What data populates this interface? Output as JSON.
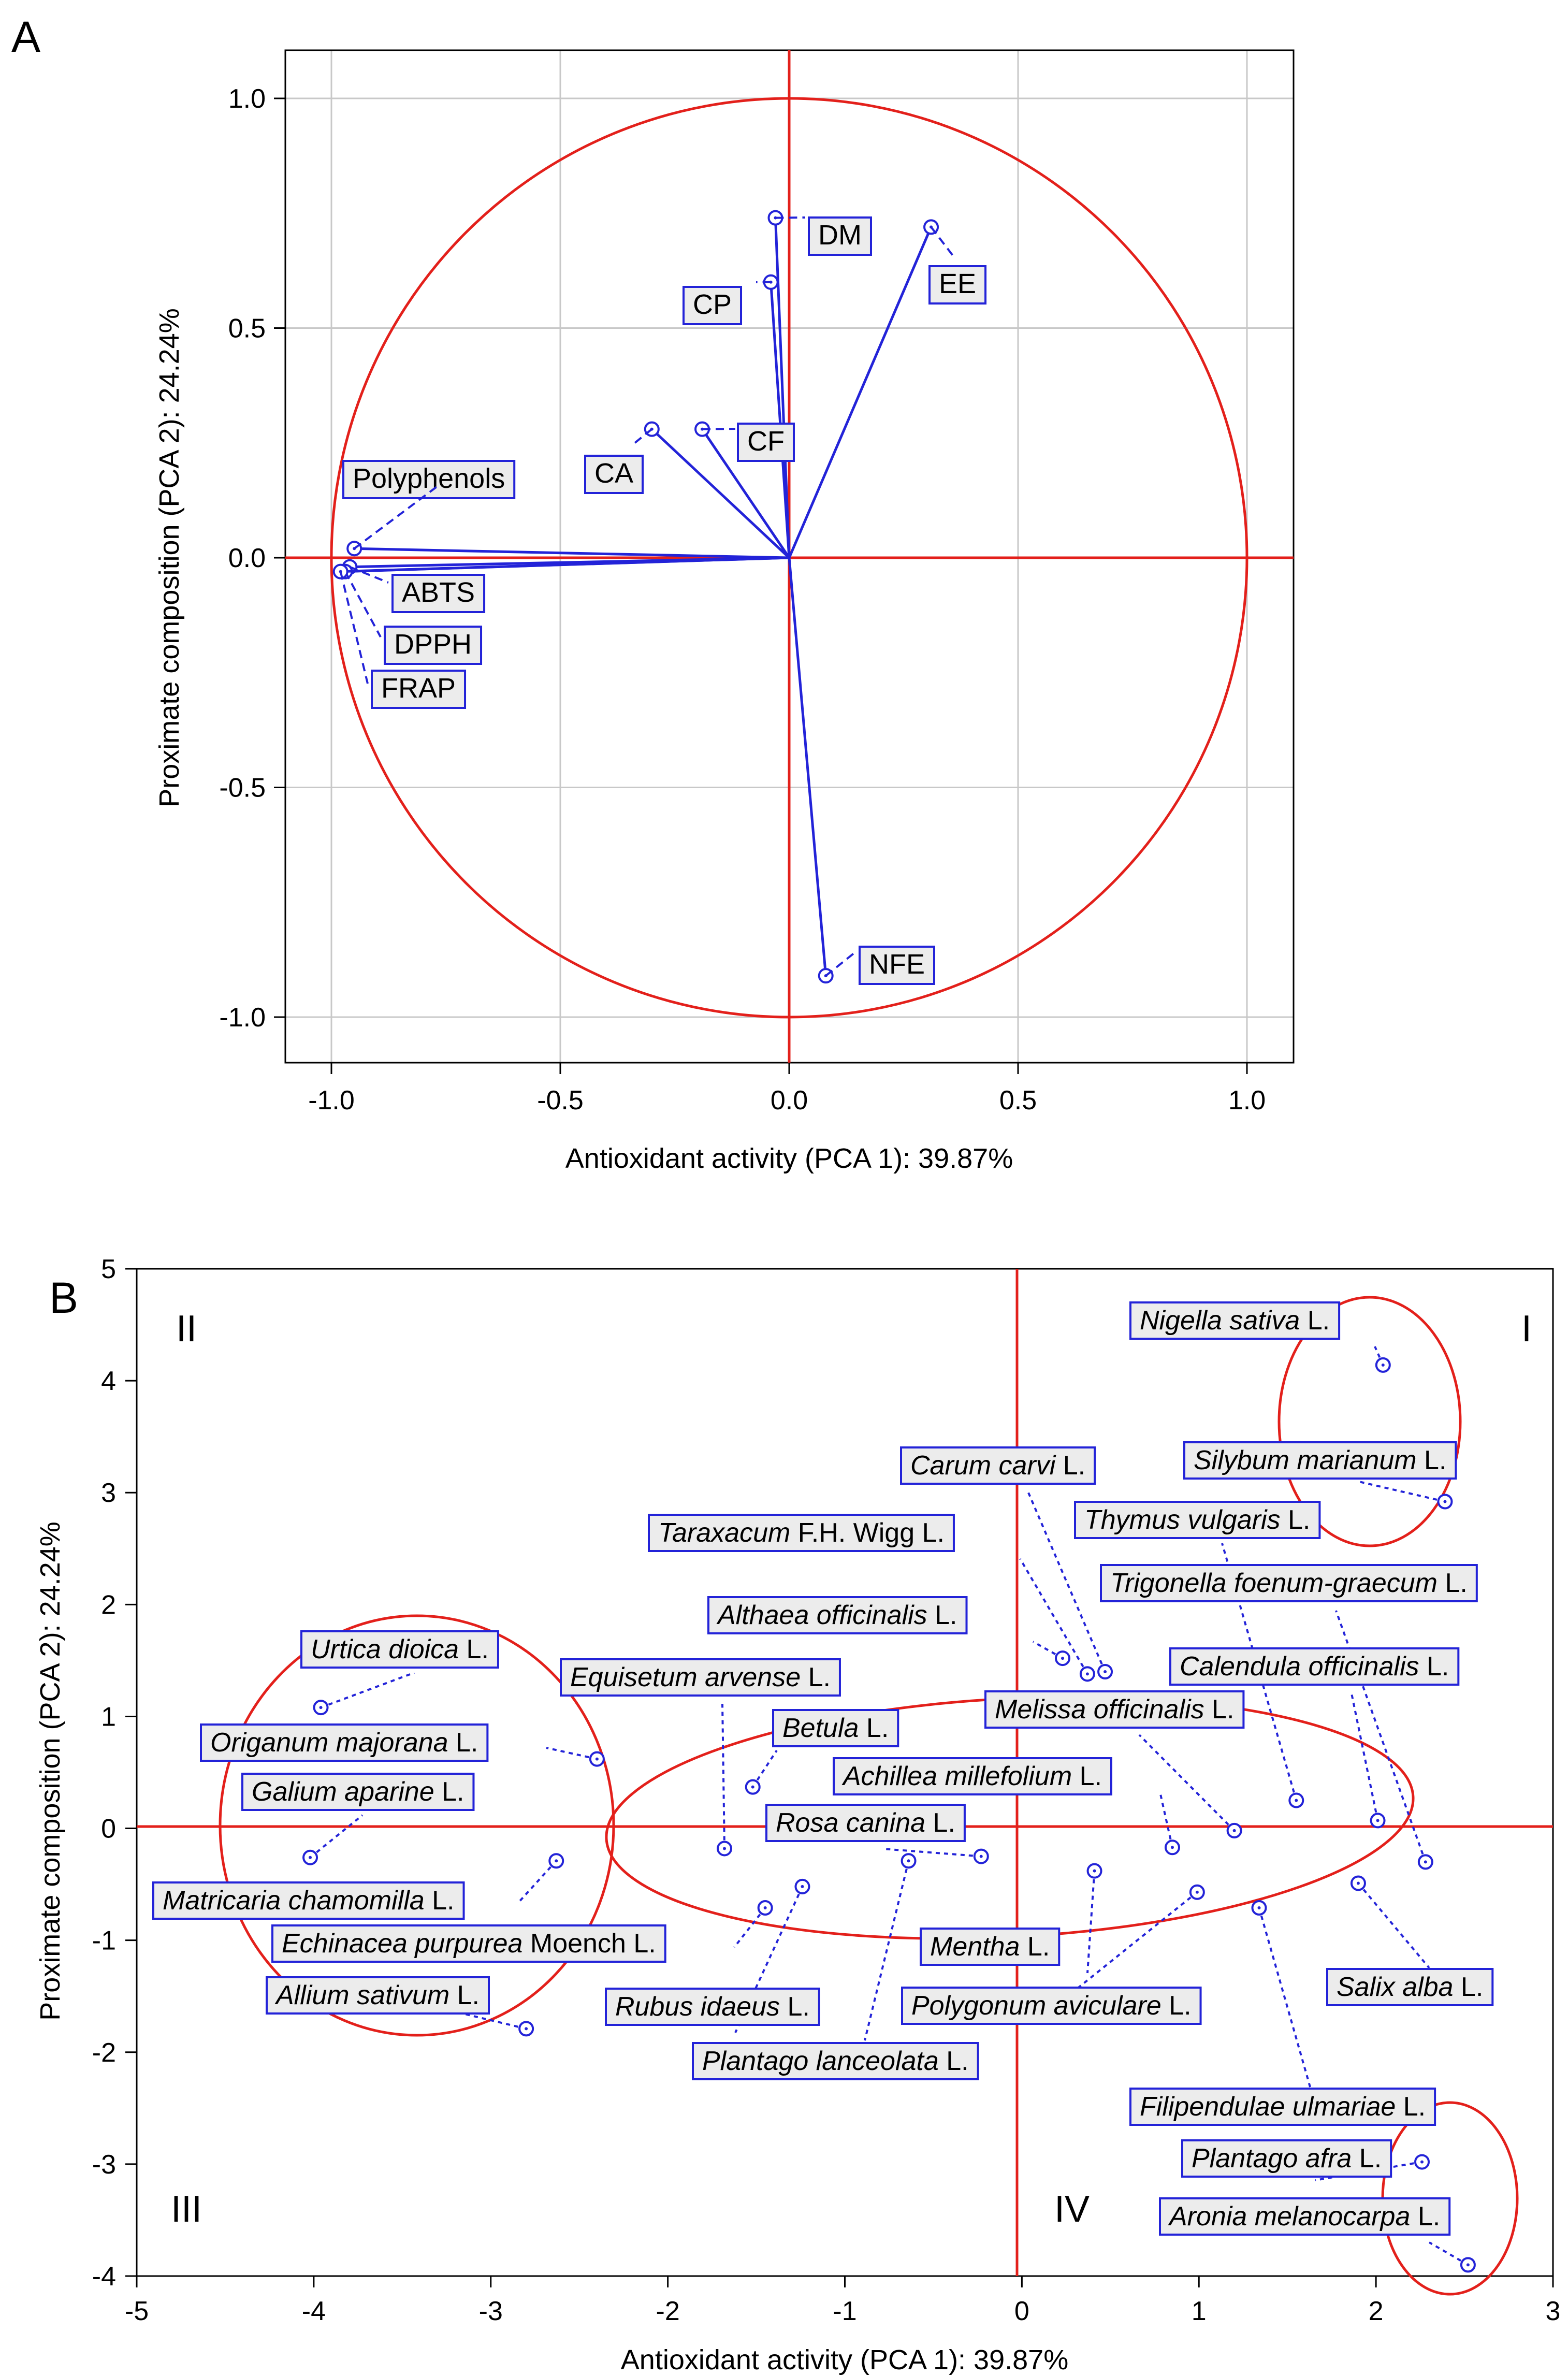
{
  "panels": [
    {
      "panel_label": "A",
      "xlabel": "Antioxidant activity (PCA 1): 39.87%",
      "ylabel": "Proximate composition (PCA 2): 24.24%"
    },
    {
      "panel_label": "B",
      "xlabel": "Antioxidant activity (PCA 1): 39.87%",
      "ylabel": "Proximate composition (PCA 2): 24.24%",
      "quadrant_labels": [
        "I",
        "II",
        "III",
        "IV"
      ]
    }
  ],
  "colors": {
    "axis_lines": "#e3201b",
    "points": "#2323d8",
    "grid": "#c8c8c8",
    "label_box_fill": "#ececec"
  },
  "chart_data": [
    {
      "type": "scatter",
      "subtype": "pca-loading-plot",
      "title": "",
      "xlabel": "Antioxidant activity (PCA 1): 39.87%",
      "ylabel": "Proximate composition (PCA 2): 24.24%",
      "xlim": [
        -1.1,
        1.1
      ],
      "ylim": [
        -1.1,
        1.1
      ],
      "xticks": [
        "-1.0",
        "-0.5",
        "0.0",
        "0.5",
        "1.0"
      ],
      "yticks": [
        "1.0",
        "0.5",
        "0.0",
        "-0.5",
        "-1.0"
      ],
      "grid": true,
      "unit_circle": true,
      "points": [
        {
          "label": "DM",
          "x": -0.03,
          "y": 0.74
        },
        {
          "label": "CP",
          "x": -0.04,
          "y": 0.6
        },
        {
          "label": "EE",
          "x": 0.31,
          "y": 0.72
        },
        {
          "label": "CA",
          "x": -0.3,
          "y": 0.28
        },
        {
          "label": "CF",
          "x": -0.19,
          "y": 0.28
        },
        {
          "label": "Polyphenols",
          "x": -0.95,
          "y": 0.02
        },
        {
          "label": "ABTS",
          "x": -0.96,
          "y": -0.02
        },
        {
          "label": "DPPH",
          "x": -0.97,
          "y": -0.03
        },
        {
          "label": "FRAP",
          "x": -0.98,
          "y": -0.03
        },
        {
          "label": "NFE",
          "x": 0.08,
          "y": -0.91
        }
      ]
    },
    {
      "type": "scatter",
      "subtype": "pca-score-plot",
      "title": "",
      "xlabel": "Antioxidant activity (PCA 1): 39.87%",
      "ylabel": "Proximate composition (PCA 2): 24.24%",
      "xlim": [
        -5,
        3
      ],
      "ylim": [
        -4,
        5
      ],
      "xticks": [
        "-5",
        "-4",
        "-3",
        "-2",
        "-1",
        "0",
        "1",
        "2",
        "3"
      ],
      "yticks": [
        "5",
        "4",
        "3",
        "2",
        "1",
        "0",
        "-1",
        "-2",
        "-3",
        "-4"
      ],
      "grid": false,
      "points": [
        {
          "label": "Nigella sativa L.",
          "x": 2.04,
          "y": 4.14
        },
        {
          "label": "Silybum marianum L.",
          "x": 2.39,
          "y": 2.92
        },
        {
          "label": "Carum carvi L.",
          "x": 0.47,
          "y": 1.4
        },
        {
          "label": "Taraxacum F.H. Wigg L.",
          "x": 0.37,
          "y": 1.38
        },
        {
          "label": "Thymus vulgaris L.",
          "x": 1.55,
          "y": 0.25
        },
        {
          "label": "Trigonella foenum-graecum L.",
          "x": 2.28,
          "y": -0.3
        },
        {
          "label": "Althaea officinalis L.",
          "x": 0.23,
          "y": 1.52
        },
        {
          "label": "Calendula officinalis L.",
          "x": 2.01,
          "y": 0.07
        },
        {
          "label": "Urtica dioica L.",
          "x": -3.96,
          "y": 1.08
        },
        {
          "label": "Equisetum arvense L.",
          "x": -1.68,
          "y": -0.18
        },
        {
          "label": "Melissa officinalis L.",
          "x": 1.2,
          "y": -0.02
        },
        {
          "label": "Origanum majorana L.",
          "x": -2.4,
          "y": 0.62
        },
        {
          "label": "Betula L.",
          "x": -1.52,
          "y": 0.37
        },
        {
          "label": "Achillea millefolium L.",
          "x": 0.85,
          "y": -0.17
        },
        {
          "label": "Galium aparine L.",
          "x": -4.02,
          "y": -0.26
        },
        {
          "label": "Rosa canina L.",
          "x": -0.23,
          "y": -0.25
        },
        {
          "label": "Matricaria chamomilla L.",
          "x": -2.63,
          "y": -0.29
        },
        {
          "label": "Echinacea purpurea Moench L.",
          "x": -1.45,
          "y": -0.71
        },
        {
          "label": "Mentha L.",
          "x": 0.41,
          "y": -0.38
        },
        {
          "label": "Salix alba L.",
          "x": 1.9,
          "y": -0.49
        },
        {
          "label": "Allium sativum L.",
          "x": -2.8,
          "y": -1.79
        },
        {
          "label": "Rubus idaeus L.",
          "x": -1.24,
          "y": -0.52
        },
        {
          "label": "Polygonum aviculare L.",
          "x": 0.99,
          "y": -0.57
        },
        {
          "label": "Plantago lanceolata L.",
          "x": -0.64,
          "y": -0.29
        },
        {
          "label": "Filipendulae ulmariae L.",
          "x": 1.34,
          "y": -0.71
        },
        {
          "label": "Plantago afra L.",
          "x": 2.26,
          "y": -2.98
        },
        {
          "label": "Aronia melanocarpa L.",
          "x": 2.52,
          "y": -3.9
        }
      ]
    }
  ]
}
